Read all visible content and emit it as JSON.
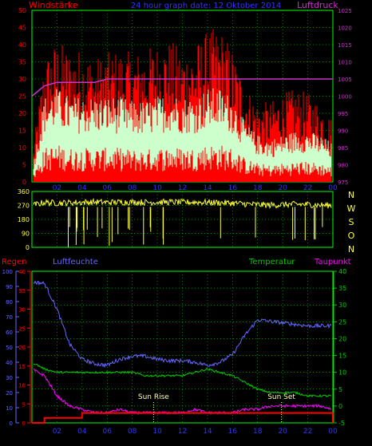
{
  "header": {
    "left_label": "Windstärke",
    "title": "24 hour graph date: 12 Oktober 2014",
    "right_label": "Luftdruck"
  },
  "colors": {
    "wind": "#ff0000",
    "gust_light": "#ccffcc",
    "pressure": "#cc33cc",
    "direction": "#ffff33",
    "humidity": "#6666ff",
    "temperature": "#00cc00",
    "dewpoint": "#ff00ff",
    "rain": "#ff0000",
    "grid": "#00ff00",
    "sun": "#ffffaa"
  },
  "x_ticks": [
    "02",
    "04",
    "06",
    "08",
    "10",
    "12",
    "14",
    "16",
    "18",
    "20",
    "22",
    "00"
  ],
  "chart_data": [
    {
      "type": "line",
      "title": "24 hour graph date: 12 Oktober 2014",
      "left_axis_label": "Windstärke",
      "right_axis_label": "Luftdruck",
      "left_ticks": [
        "50",
        "45",
        "40",
        "35",
        "30",
        "25",
        "20",
        "15",
        "10",
        "5",
        "0"
      ],
      "right_ticks": [
        "1025",
        "1020",
        "1015",
        "1010",
        "1005",
        "1000",
        "995",
        "990",
        "985",
        "980",
        "975"
      ],
      "ylim_left": [
        0,
        50
      ],
      "ylim_right": [
        975,
        1025
      ],
      "x": [
        0,
        1,
        2,
        3,
        4,
        5,
        6,
        7,
        8,
        9,
        10,
        11,
        12,
        13,
        14,
        15,
        16,
        17,
        18,
        19,
        20,
        21,
        22,
        23,
        24
      ],
      "series": [
        {
          "key": "gust",
          "values": [
            5,
            28,
            32,
            30,
            30,
            28,
            29,
            30,
            29,
            30,
            31,
            32,
            30,
            31,
            34,
            35,
            30,
            22,
            18,
            18,
            20,
            21,
            20,
            18,
            14
          ]
        },
        {
          "key": "wind",
          "values": [
            3,
            20,
            22,
            20,
            20,
            20,
            20,
            20,
            19,
            19,
            20,
            21,
            20,
            20,
            22,
            22,
            20,
            14,
            11,
            10,
            11,
            12,
            12,
            11,
            9
          ]
        },
        {
          "key": "pressure",
          "values": [
            1000,
            1003,
            1004,
            1004,
            1004,
            1004,
            1005,
            1005,
            1005,
            1005,
            1005,
            1005,
            1005,
            1005,
            1005,
            1005,
            1005,
            1005,
            1005,
            1005,
            1005,
            1005,
            1005,
            1005,
            1005
          ]
        }
      ]
    },
    {
      "type": "line",
      "right_axis_labels": [
        "N",
        "W",
        "S",
        "O",
        "N"
      ],
      "left_ticks": [
        "360",
        "270",
        "180",
        "90",
        "0"
      ],
      "ylim": [
        0,
        360
      ],
      "x": [
        0,
        1,
        2,
        3,
        4,
        5,
        6,
        7,
        8,
        9,
        10,
        11,
        12,
        13,
        14,
        15,
        16,
        17,
        18,
        19,
        20,
        21,
        22,
        23,
        24
      ],
      "series": [
        {
          "key": "direction",
          "values": [
            270,
            290,
            285,
            288,
            290,
            292,
            290,
            291,
            292,
            290,
            291,
            292,
            290,
            291,
            290,
            288,
            285,
            280,
            275,
            272,
            275,
            278,
            276,
            272,
            270
          ]
        }
      ]
    },
    {
      "type": "line",
      "legend": [
        "Regen",
        "Luftfeuchte",
        "Temperatur",
        "Taupunkt"
      ],
      "left_ticks_1": [
        "40",
        "35",
        "30",
        "25",
        "20",
        "15",
        "10",
        "5",
        "0"
      ],
      "left_ticks_2": [
        "100",
        "90",
        "80",
        "70",
        "60",
        "50",
        "40",
        "30",
        "20",
        "10",
        "0"
      ],
      "right_ticks": [
        "40",
        "35",
        "30",
        "25",
        "20",
        "15",
        "10",
        "5",
        "0",
        "-5"
      ],
      "ylim_humidity": [
        0,
        100
      ],
      "ylim_temp": [
        -5,
        40
      ],
      "annotations": [
        "Sun Rise",
        "Sun Set"
      ],
      "x": [
        0,
        1,
        2,
        3,
        4,
        5,
        6,
        7,
        8,
        9,
        10,
        11,
        12,
        13,
        14,
        15,
        16,
        17,
        18,
        19,
        20,
        21,
        22,
        23,
        24
      ],
      "series": [
        {
          "key": "humidity",
          "values": [
            93,
            92,
            75,
            52,
            42,
            39,
            38,
            42,
            44,
            44,
            42,
            41,
            41,
            40,
            38,
            40,
            45,
            58,
            68,
            67,
            66,
            65,
            64,
            64,
            64
          ]
        },
        {
          "key": "temperature",
          "values": [
            13,
            11,
            10,
            10,
            10,
            10,
            10,
            10,
            10,
            9,
            9,
            9,
            9,
            10,
            11,
            10,
            9,
            7,
            5,
            4,
            4,
            4,
            3,
            3,
            3
          ]
        },
        {
          "key": "dewpoint",
          "values": [
            11,
            9,
            3,
            0,
            -1,
            -2,
            -2,
            -1,
            -2,
            -2,
            -2,
            -2,
            -2,
            -1,
            -2,
            -2,
            -2,
            -1,
            -1,
            0,
            0,
            0,
            0,
            0,
            -1
          ]
        },
        {
          "key": "rain",
          "values": [
            0,
            1.3,
            1.3,
            1.3,
            2.6,
            2.6,
            2.6,
            2.6,
            2.6,
            2.6,
            2.6,
            2.6,
            2.6,
            2.6,
            2.6,
            2.6,
            2.6,
            2.6,
            2.6,
            2.6,
            2.6,
            2.6,
            2.6,
            2.6,
            0
          ]
        }
      ]
    }
  ]
}
